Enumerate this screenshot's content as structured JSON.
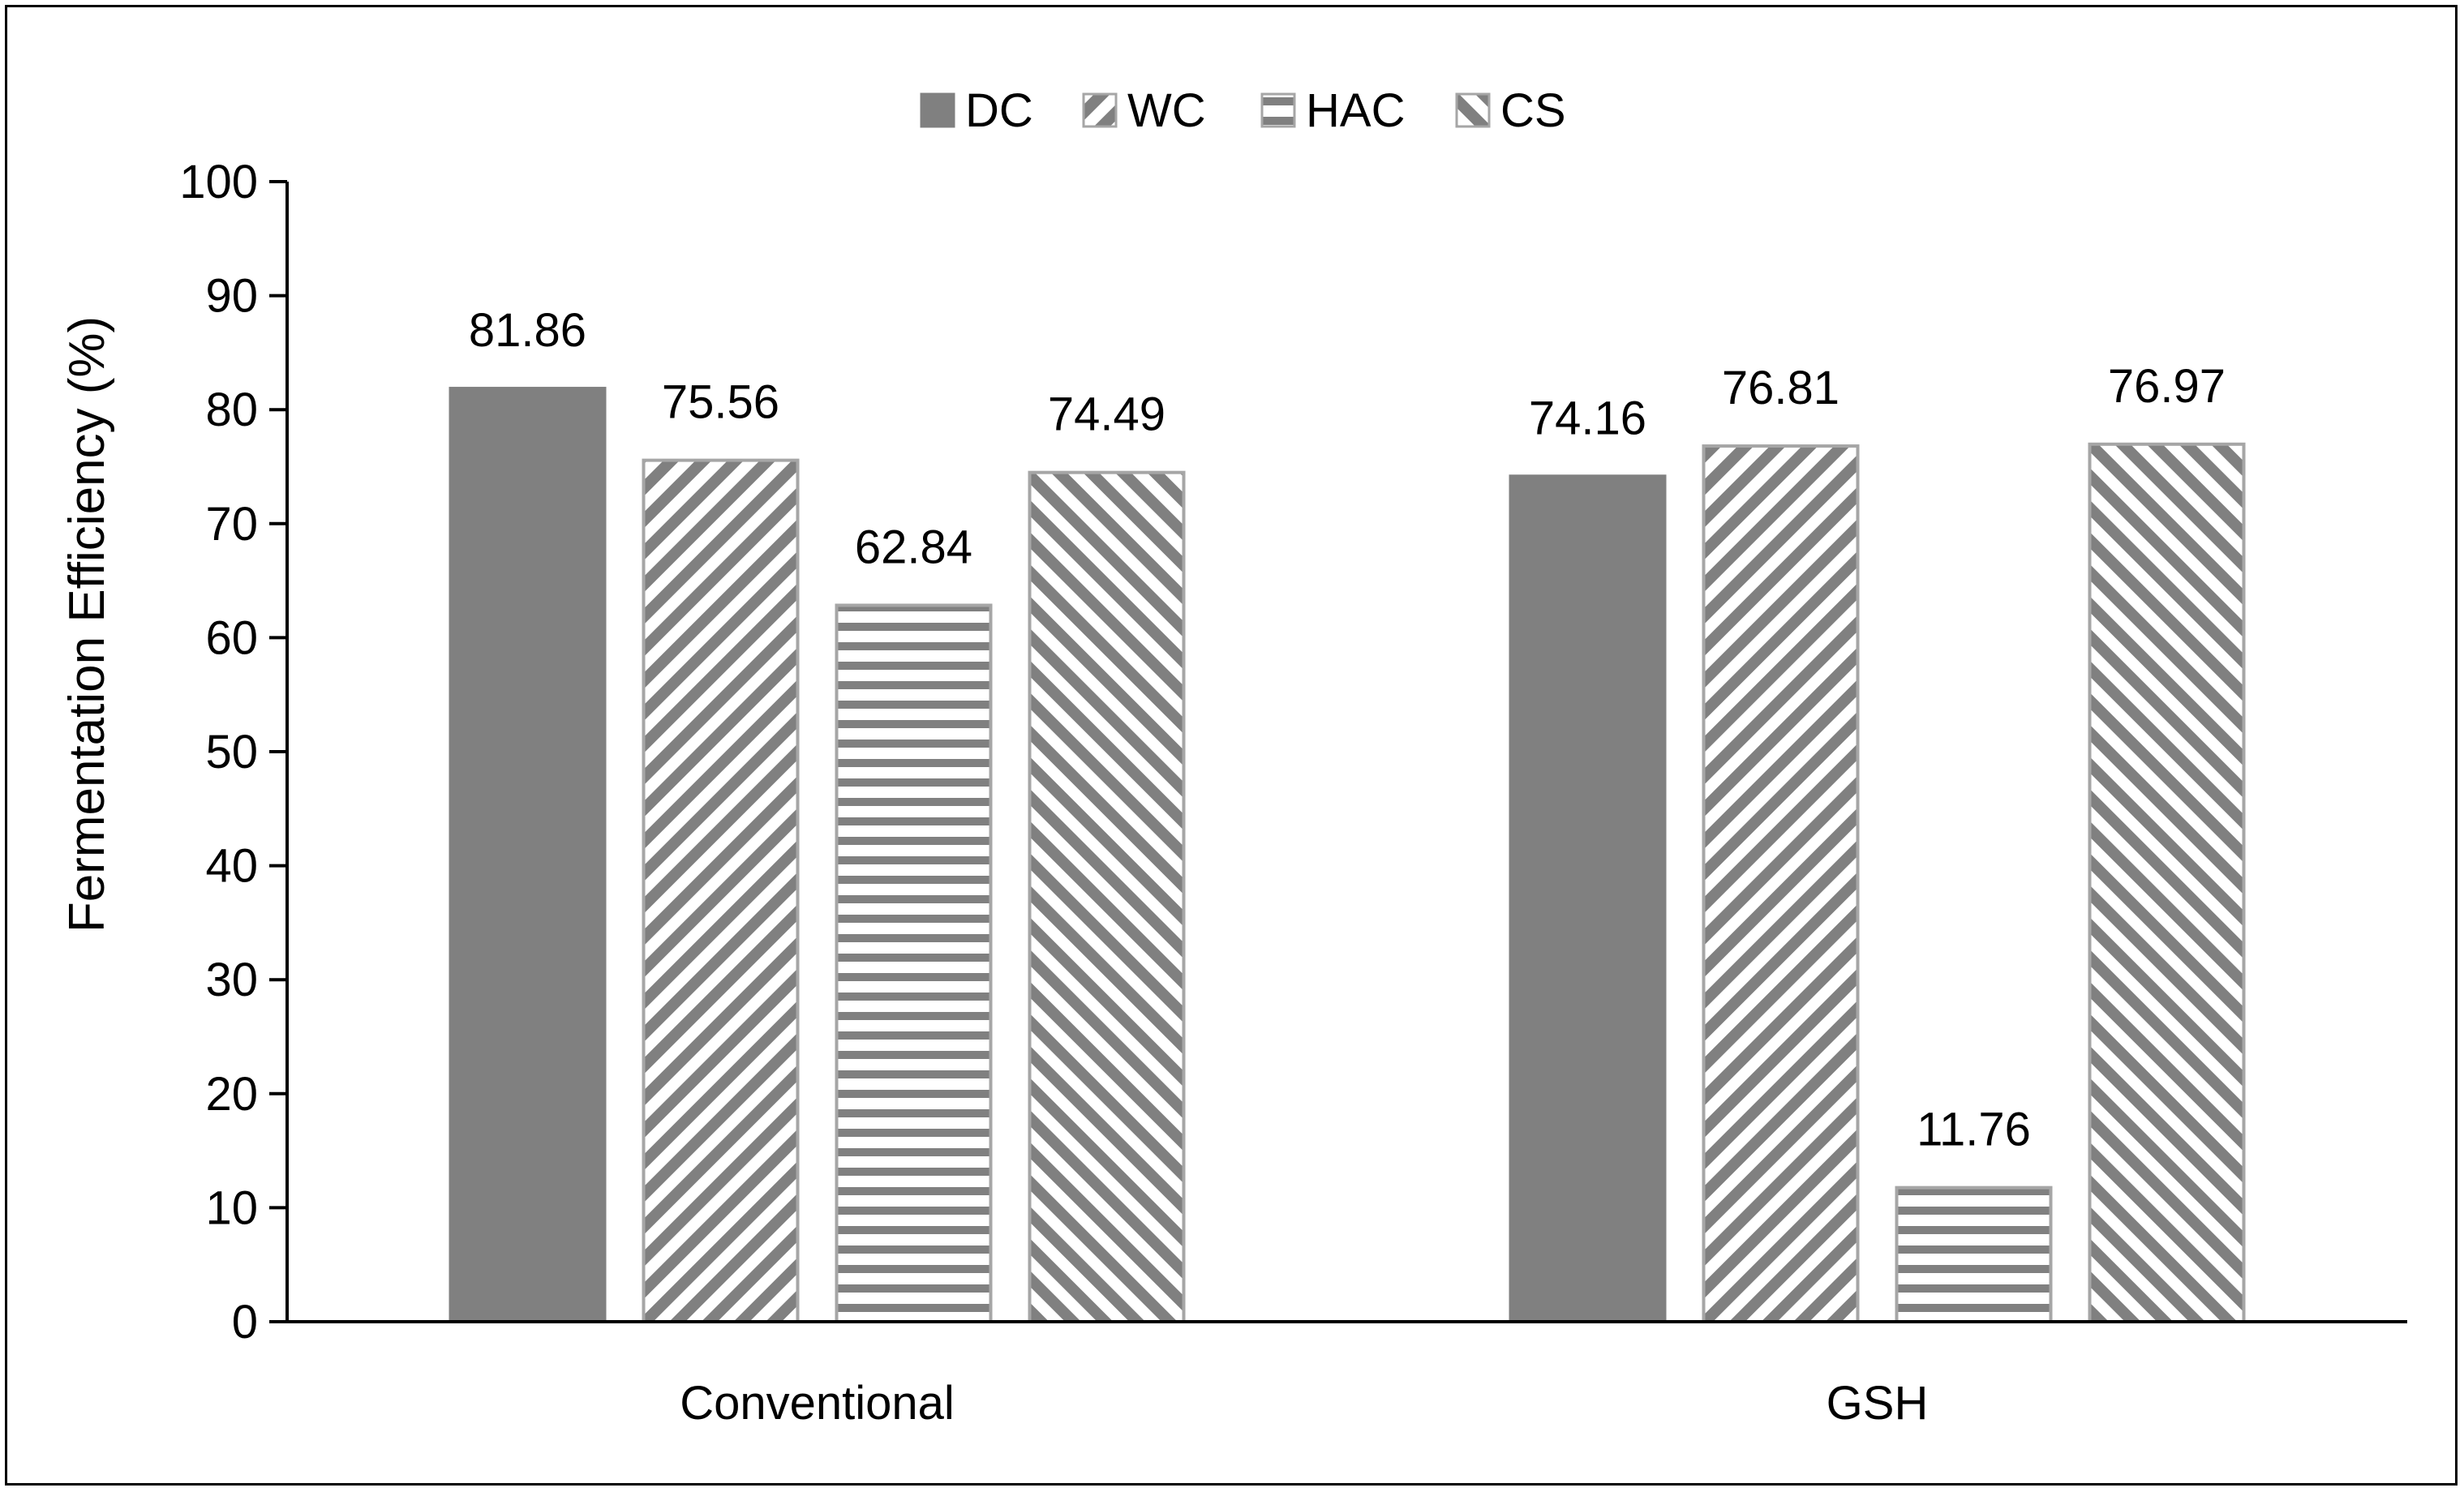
{
  "chart_data": {
    "type": "bar",
    "title": "",
    "xlabel": "",
    "ylabel": "Fermentation Efficiency (%)",
    "categories": [
      "Conventional",
      "GSH"
    ],
    "series": [
      {
        "name": "DC",
        "pattern": "solid",
        "values": [
          81.86,
          74.16
        ]
      },
      {
        "name": "WC",
        "pattern": "diagonal-down",
        "values": [
          75.56,
          76.81
        ]
      },
      {
        "name": "HAC",
        "pattern": "horizontal",
        "values": [
          62.84,
          11.76
        ]
      },
      {
        "name": "CS",
        "pattern": "diagonal-up",
        "values": [
          74.49,
          76.97
        ]
      }
    ],
    "data_labels": [
      [
        "81.86",
        "74.16"
      ],
      [
        "75.56",
        "76.81"
      ],
      [
        "62.84",
        "11.76"
      ],
      [
        "74.49",
        "76.97"
      ]
    ],
    "ylim": [
      0,
      100
    ],
    "yticks": [
      0,
      10,
      20,
      30,
      40,
      50,
      60,
      70,
      80,
      90,
      100
    ],
    "ytick_labels": [
      "0",
      "10",
      "20",
      "30",
      "40",
      "50",
      "60",
      "70",
      "80",
      "90",
      "100"
    ],
    "grid": false,
    "legend": "top-center",
    "colors": {
      "bar_fill": "#808080",
      "bar_edge": "#a6a6a6",
      "axis": "#000000"
    }
  }
}
